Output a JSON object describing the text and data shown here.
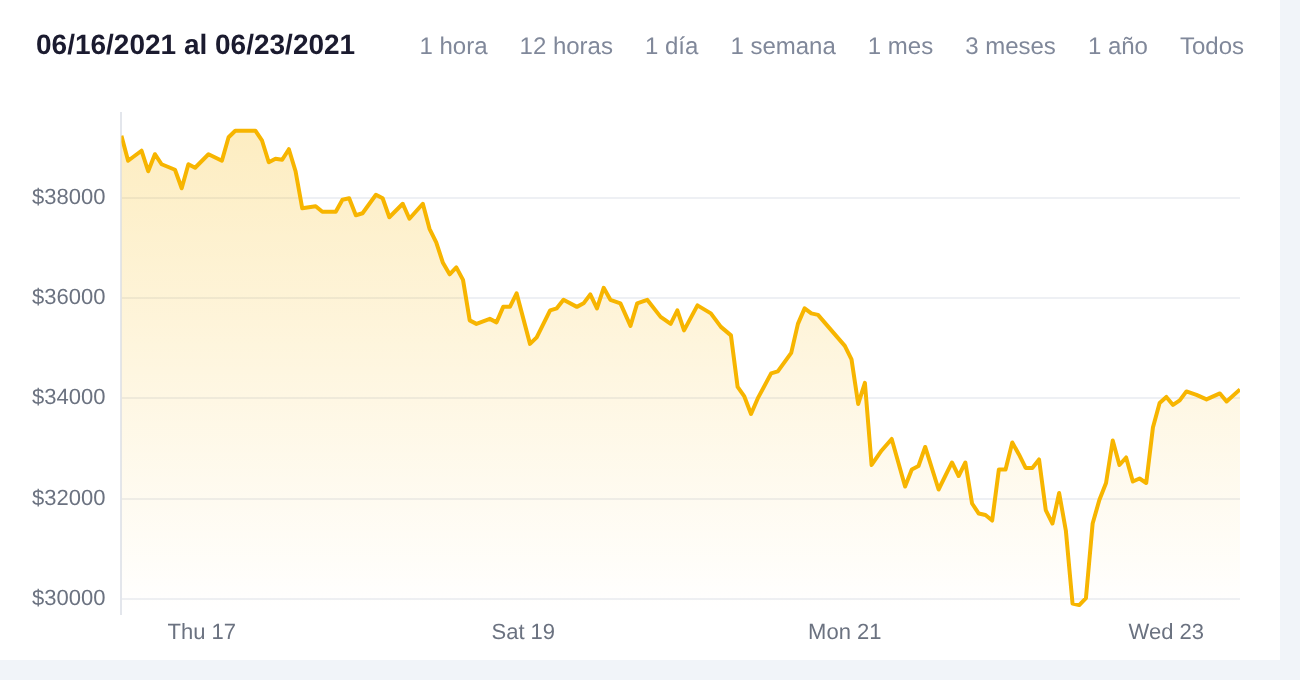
{
  "chart_data": {
    "type": "area",
    "title": "06/16/2021 al 06/23/2021",
    "annotations": [
      "1 hora",
      "12 horas",
      "1 día",
      "1 semana",
      "1 mes",
      "3 meses",
      "1 año",
      "Todos"
    ],
    "x": [
      "2021-06-16T12:00",
      "2021-06-16T13:00",
      "2021-06-16T15:00",
      "2021-06-16T16:00",
      "2021-06-16T17:00",
      "2021-06-16T18:00",
      "2021-06-16T20:00",
      "2021-06-16T21:00",
      "2021-06-16T22:00",
      "2021-06-16T23:00",
      "2021-06-17T01:00",
      "2021-06-17T03:00",
      "2021-06-17T04:00",
      "2021-06-17T05:00",
      "2021-06-17T08:00",
      "2021-06-17T09:00",
      "2021-06-17T10:00",
      "2021-06-17T11:00",
      "2021-06-17T12:00",
      "2021-06-17T13:00",
      "2021-06-17T14:00",
      "2021-06-17T15:00",
      "2021-06-17T17:00",
      "2021-06-17T18:00",
      "2021-06-17T20:00",
      "2021-06-17T21:00",
      "2021-06-17T22:00",
      "2021-06-17T23:00",
      "2021-06-18T00:00",
      "2021-06-18T02:00",
      "2021-06-18T03:00",
      "2021-06-18T04:00",
      "2021-06-18T06:00",
      "2021-06-18T07:00",
      "2021-06-18T09:00",
      "2021-06-18T10:00",
      "2021-06-18T11:00",
      "2021-06-18T12:00",
      "2021-06-18T13:00",
      "2021-06-18T14:00",
      "2021-06-18T15:00",
      "2021-06-18T16:00",
      "2021-06-18T17:00",
      "2021-06-18T19:00",
      "2021-06-18T20:00",
      "2021-06-18T21:00",
      "2021-06-18T22:00",
      "2021-06-18T23:00",
      "2021-06-19T01:00",
      "2021-06-19T02:00",
      "2021-06-19T04:00",
      "2021-06-19T05:00",
      "2021-06-19T06:00",
      "2021-06-19T08:00",
      "2021-06-19T09:00",
      "2021-06-19T10:00",
      "2021-06-19T11:00",
      "2021-06-19T12:00",
      "2021-06-19T13:00",
      "2021-06-19T14:30",
      "2021-06-19T16:00",
      "2021-06-19T17:00",
      "2021-06-19T18:30",
      "2021-06-19T20:30",
      "2021-06-19T22:00",
      "2021-06-19T23:00",
      "2021-06-20T00:00",
      "2021-06-20T02:00",
      "2021-06-20T04:00",
      "2021-06-20T05:30",
      "2021-06-20T07:00",
      "2021-06-20T08:00",
      "2021-06-20T09:00",
      "2021-06-20T10:00",
      "2021-06-20T11:00",
      "2021-06-20T13:00",
      "2021-06-20T14:00",
      "2021-06-20T16:00",
      "2021-06-20T17:00",
      "2021-06-20T18:00",
      "2021-06-20T19:00",
      "2021-06-20T20:00",
      "2021-06-20T22:00",
      "2021-06-21T00:00",
      "2021-06-21T01:00",
      "2021-06-21T02:00",
      "2021-06-21T03:00",
      "2021-06-21T04:00",
      "2021-06-21T05:30",
      "2021-06-21T07:00",
      "2021-06-21T09:00",
      "2021-06-21T10:00",
      "2021-06-21T11:00",
      "2021-06-21T12:00",
      "2021-06-21T14:00",
      "2021-06-21T16:00",
      "2021-06-21T17:00",
      "2021-06-21T18:00",
      "2021-06-21T19:00",
      "2021-06-21T20:00",
      "2021-06-21T21:00",
      "2021-06-21T22:00",
      "2021-06-21T23:00",
      "2021-06-22T00:00",
      "2021-06-22T01:00",
      "2021-06-22T02:00",
      "2021-06-22T03:00",
      "2021-06-22T04:00",
      "2021-06-22T05:00",
      "2021-06-22T06:00",
      "2021-06-22T07:00",
      "2021-06-22T08:00",
      "2021-06-22T09:00",
      "2021-06-22T10:00",
      "2021-06-22T11:00",
      "2021-06-22T12:00",
      "2021-06-22T13:00",
      "2021-06-22T14:00",
      "2021-06-22T15:00",
      "2021-06-22T16:00",
      "2021-06-22T17:00",
      "2021-06-22T18:00",
      "2021-06-22T19:00",
      "2021-06-22T20:00",
      "2021-06-22T21:00",
      "2021-06-22T22:00",
      "2021-06-22T23:00",
      "2021-06-23T00:00",
      "2021-06-23T01:00",
      "2021-06-23T02:00",
      "2021-06-23T03:00",
      "2021-06-23T04:30",
      "2021-06-23T06:00",
      "2021-06-23T08:00",
      "2021-06-23T09:00",
      "2021-06-23T11:00"
    ],
    "series": [
      {
        "color": "#f7b500",
        "values": [
          39250,
          38750,
          38950,
          38540,
          38880,
          38680,
          38570,
          38200,
          38680,
          38610,
          38880,
          38750,
          39220,
          39350,
          39350,
          39150,
          38720,
          38790,
          38770,
          38980,
          38540,
          37800,
          37840,
          37730,
          37730,
          37970,
          38000,
          37660,
          37700,
          38070,
          38000,
          37620,
          37890,
          37590,
          37890,
          37390,
          37120,
          36710,
          36480,
          36620,
          36370,
          35560,
          35490,
          35590,
          35520,
          35830,
          35830,
          36100,
          35090,
          35220,
          35760,
          35800,
          35970,
          35830,
          35900,
          36080,
          35800,
          36210,
          35970,
          35900,
          35450,
          35900,
          35970,
          35630,
          35490,
          35760,
          35360,
          35860,
          35700,
          35430,
          35260,
          34230,
          34040,
          33690,
          34000,
          34500,
          34540,
          34910,
          35490,
          35800,
          35700,
          35670,
          35360,
          35050,
          34780,
          33890,
          34310,
          32670,
          32960,
          33190,
          32240,
          32580,
          32650,
          33030,
          32180,
          32720,
          32450,
          32720,
          31900,
          31700,
          31670,
          31560,
          32580,
          32580,
          33120,
          32880,
          32610,
          32610,
          32780,
          31770,
          31500,
          32110,
          31360,
          29900,
          29870,
          30010,
          31500,
          31970,
          32310,
          33160,
          32670,
          32820,
          32340,
          32400,
          32310,
          33420,
          33910,
          34030,
          33870,
          33960,
          34140,
          34070,
          33980,
          34100,
          33940,
          34180
        ]
      }
    ],
    "xlim": [
      "2021-06-16T12:00",
      "2021-06-23T11:00"
    ],
    "xticks": [
      {
        "value": "2021-06-17",
        "label": "Thu 17"
      },
      {
        "value": "2021-06-19",
        "label": "Sat 19"
      },
      {
        "value": "2021-06-21",
        "label": "Mon 21"
      },
      {
        "value": "2021-06-23",
        "label": "Wed 23"
      }
    ],
    "ylim": [
      29700,
      39700
    ],
    "yticks": [
      {
        "value": 30000,
        "label": "$30000"
      },
      {
        "value": 32000,
        "label": "$32000"
      },
      {
        "value": 34000,
        "label": "$34000"
      },
      {
        "value": 36000,
        "label": "$36000"
      },
      {
        "value": 38000,
        "label": "$38000"
      }
    ],
    "grid": "y",
    "legend": false
  }
}
